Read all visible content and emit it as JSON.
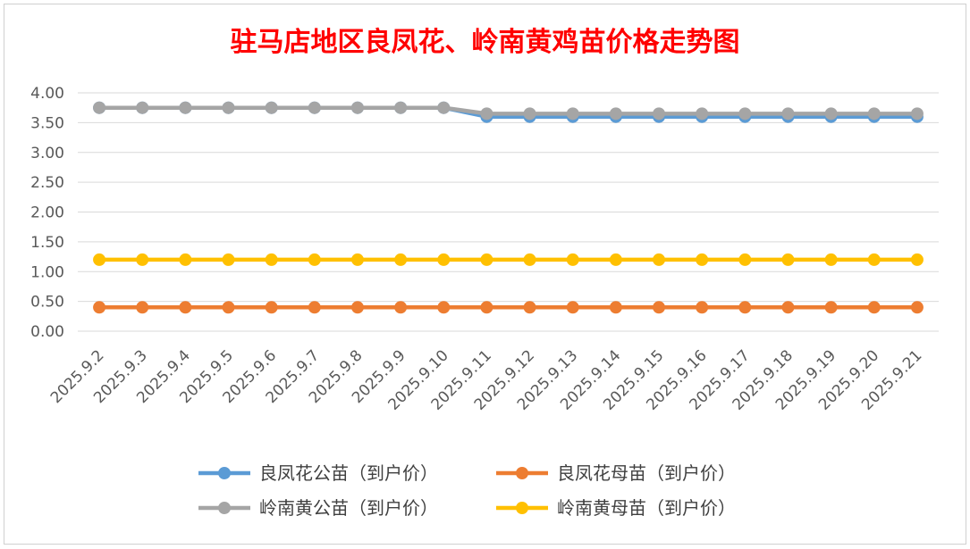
{
  "chart_data": {
    "type": "line",
    "title": "驻马店地区良凤花、岭南黄鸡苗价格走势图",
    "xlabel": "",
    "ylabel": "",
    "categories": [
      "2025.9.2",
      "2025.9.3",
      "2025.9.4",
      "2025.9.5",
      "2025.9.6",
      "2025.9.7",
      "2025.9.8",
      "2025.9.9",
      "2025.9.10",
      "2025.9.11",
      "2025.9.12",
      "2025.9.13",
      "2025.9.14",
      "2025.9.15",
      "2025.9.16",
      "2025.9.17",
      "2025.9.18",
      "2025.9.19",
      "2025.9.20",
      "2025.9.21"
    ],
    "ylim": [
      0,
      4
    ],
    "yticks": [
      "0.00",
      "0.50",
      "1.00",
      "1.50",
      "2.00",
      "2.50",
      "3.00",
      "3.50",
      "4.00"
    ],
    "grid": true,
    "legend_position": "bottom",
    "series": [
      {
        "name": "良凤花公苗（到户价）",
        "color": "#5b9bd5",
        "values": [
          3.75,
          3.75,
          3.75,
          3.75,
          3.75,
          3.75,
          3.75,
          3.75,
          3.75,
          3.6,
          3.6,
          3.6,
          3.6,
          3.6,
          3.6,
          3.6,
          3.6,
          3.6,
          3.6,
          3.6
        ]
      },
      {
        "name": "良凤花母苗（到户价）",
        "color": "#ed7d31",
        "values": [
          0.4,
          0.4,
          0.4,
          0.4,
          0.4,
          0.4,
          0.4,
          0.4,
          0.4,
          0.4,
          0.4,
          0.4,
          0.4,
          0.4,
          0.4,
          0.4,
          0.4,
          0.4,
          0.4,
          0.4
        ]
      },
      {
        "name": "岭南黄公苗（到户价）",
        "color": "#a5a5a5",
        "values": [
          3.75,
          3.75,
          3.75,
          3.75,
          3.75,
          3.75,
          3.75,
          3.75,
          3.75,
          3.65,
          3.65,
          3.65,
          3.65,
          3.65,
          3.65,
          3.65,
          3.65,
          3.65,
          3.65,
          3.65
        ]
      },
      {
        "name": "岭南黄母苗（到户价）",
        "color": "#ffc000",
        "values": [
          1.2,
          1.2,
          1.2,
          1.2,
          1.2,
          1.2,
          1.2,
          1.2,
          1.2,
          1.2,
          1.2,
          1.2,
          1.2,
          1.2,
          1.2,
          1.2,
          1.2,
          1.2,
          1.2,
          1.2
        ]
      }
    ]
  }
}
